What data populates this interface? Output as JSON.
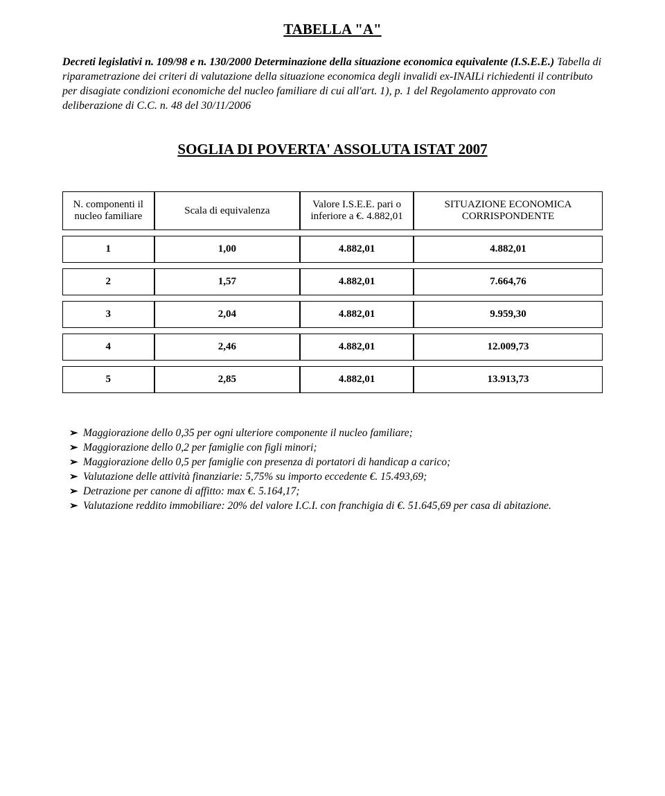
{
  "title": "TABELLA \"A\"",
  "intro": {
    "line1_prefix": "Decreti legislativi n. 109/98 e n. 130/2000 Determinazione della situazione economica equivalente (I.S.E.E.)",
    "line2": " Tabella di riparametrazione dei criteri di valutazione della situazione economica degli invalidi ex-INAILi richiedenti il contributo per disagiate condizioni economiche del nucleo familiare di cui all'art. 1), p. 1 del Regolamento approvato con deliberazione di C.C. n. 48 del 30/11/2006"
  },
  "section_title": "SOGLIA DI POVERTA' ASSOLUTA ISTAT 2007",
  "table": {
    "headers": {
      "c1": "N. componenti il nucleo familiare",
      "c2": "Scala di equivalenza",
      "c3": "Valore I.S.E.E. pari o inferiore a €. 4.882,01",
      "c4": "SITUAZIONE ECONOMICA CORRISPONDENTE"
    },
    "rows": [
      {
        "n": "1",
        "scala": "1,00",
        "val": "4.882,01",
        "sit": "4.882,01"
      },
      {
        "n": "2",
        "scala": "1,57",
        "val": "4.882,01",
        "sit": "7.664,76"
      },
      {
        "n": "3",
        "scala": "2,04",
        "val": "4.882,01",
        "sit": "9.959,30"
      },
      {
        "n": "4",
        "scala": "2,46",
        "val": "4.882,01",
        "sit": "12.009,73"
      },
      {
        "n": "5",
        "scala": "2,85",
        "val": "4.882,01",
        "sit": "13.913,73"
      }
    ]
  },
  "bullets": [
    "Maggiorazione dello 0,35 per ogni ulteriore componente il nucleo familiare;",
    "Maggiorazione dello 0,2 per famiglie con figli minori;",
    "Maggiorazione dello 0,5 per famiglie con presenza di portatori di handicap a carico;",
    "Valutazione delle attività finanziarie: 5,75% su importo eccedente €. 15.493,69;",
    "Detrazione per canone di affitto: max €. 5.164,17;",
    "Valutazione reddito immobiliare: 20% del valore I.C.I. con franchigia di €. 51.645,69 per casa di abitazione."
  ],
  "arrow_glyph": "➢"
}
